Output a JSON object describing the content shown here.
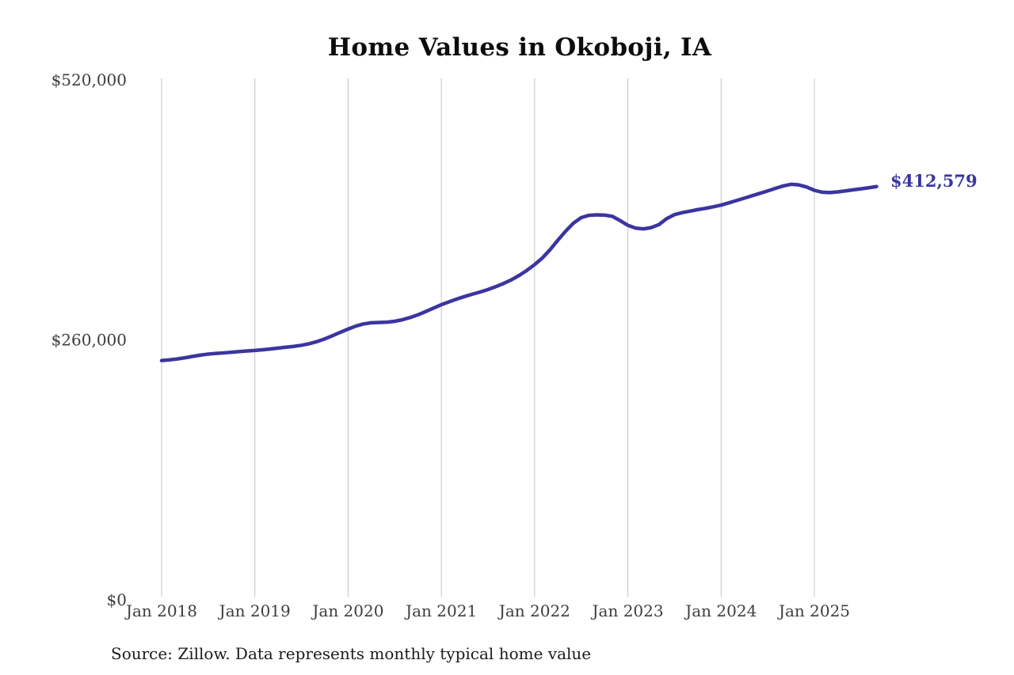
{
  "chart_data": {
    "type": "line",
    "title": "Home Values in Okoboji, IA",
    "source_note": "Source: Zillow. Data represents monthly typical home value",
    "series_name": "Monthly typical home value",
    "frequency": "monthly",
    "start_month": "Jan 2018",
    "end_month": "Sep 2025",
    "end_label": "$412,579",
    "end_value": 412579,
    "ylim": [
      0,
      520000
    ],
    "y_ticks": [
      {
        "label": "$0",
        "value": 0
      },
      {
        "label": "$260,000",
        "value": 260000
      },
      {
        "label": "$520,000",
        "value": 520000
      }
    ],
    "x_ticks": [
      {
        "label": "Jan 2018",
        "month_index": 0
      },
      {
        "label": "Jan 2019",
        "month_index": 12
      },
      {
        "label": "Jan 2020",
        "month_index": 24
      },
      {
        "label": "Jan 2021",
        "month_index": 36
      },
      {
        "label": "Jan 2022",
        "month_index": 48
      },
      {
        "label": "Jan 2023",
        "month_index": 60
      },
      {
        "label": "Jan 2024",
        "month_index": 72
      },
      {
        "label": "Jan 2025",
        "month_index": 84
      }
    ],
    "values": [
      238500,
      239200,
      240100,
      241300,
      242700,
      244000,
      245000,
      245700,
      246200,
      246800,
      247500,
      248100,
      248600,
      249300,
      250100,
      251000,
      251900,
      252700,
      253800,
      255400,
      257500,
      260200,
      263400,
      266800,
      270000,
      273000,
      275200,
      276300,
      276600,
      276900,
      277800,
      279400,
      281600,
      284300,
      287600,
      291000,
      294400,
      297300,
      300100,
      302600,
      304900,
      307100,
      309600,
      312400,
      315600,
      319200,
      323600,
      328700,
      334500,
      341200,
      349500,
      359000,
      368000,
      376000,
      381500,
      383800,
      384300,
      384000,
      382800,
      378500,
      373800,
      371000,
      370200,
      371500,
      374500,
      380500,
      384500,
      386500,
      388000,
      389500,
      390800,
      392300,
      394000,
      396300,
      398600,
      401000,
      403400,
      405800,
      408200,
      410800,
      413200,
      414800,
      414200,
      412100,
      408800,
      406900,
      406500,
      407200,
      408200,
      409300,
      410300,
      411400,
      412579
    ],
    "line_color": "#3b35a0",
    "end_label_color": "#3b35a0",
    "grid_color": "#c4c4c4",
    "tick_color": "#3d3d3d",
    "background_color": "#ffffff",
    "legend": "none",
    "grid": "vertical-only"
  }
}
